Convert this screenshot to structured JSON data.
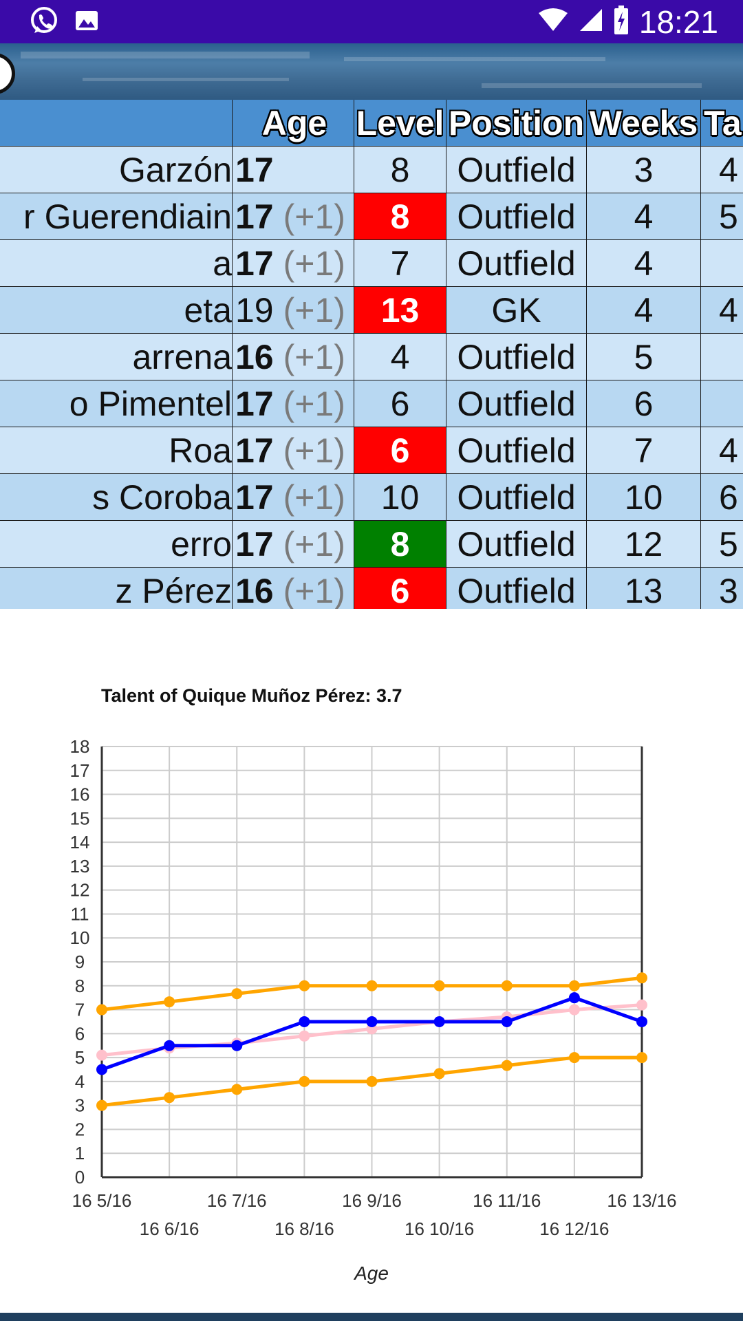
{
  "status_bar": {
    "time": "18:21",
    "left_icons": [
      "whatsapp-icon",
      "image-icon"
    ],
    "right_icons": [
      "wifi-icon",
      "signal-icon",
      "battery-charging-icon"
    ],
    "background": "#3a0aa8"
  },
  "table": {
    "headers": [
      "",
      "Age",
      "Level",
      "Position",
      "Weeks",
      "Ta"
    ],
    "rows": [
      {
        "name": "Garzón",
        "age": "17",
        "age_extra": "",
        "age_bold": true,
        "level": "8",
        "level_color": "",
        "position": "Outfield",
        "weeks": "3",
        "ta": "4"
      },
      {
        "name": "r Guerendiain",
        "age": "17",
        "age_extra": "(+1)",
        "age_bold": true,
        "level": "8",
        "level_color": "red",
        "position": "Outfield",
        "weeks": "4",
        "ta": "5"
      },
      {
        "name": "a",
        "age": "17",
        "age_extra": "(+1)",
        "age_bold": true,
        "level": "7",
        "level_color": "",
        "position": "Outfield",
        "weeks": "4",
        "ta": ""
      },
      {
        "name": "eta",
        "age": "19",
        "age_extra": "(+1)",
        "age_bold": false,
        "level": "13",
        "level_color": "red",
        "position": "GK",
        "weeks": "4",
        "ta": "4"
      },
      {
        "name": "arrena",
        "age": "16",
        "age_extra": "(+1)",
        "age_bold": true,
        "level": "4",
        "level_color": "",
        "position": "Outfield",
        "weeks": "5",
        "ta": ""
      },
      {
        "name": "o Pimentel",
        "age": "17",
        "age_extra": "(+1)",
        "age_bold": true,
        "level": "6",
        "level_color": "",
        "position": "Outfield",
        "weeks": "6",
        "ta": ""
      },
      {
        "name": "Roa",
        "age": "17",
        "age_extra": "(+1)",
        "age_bold": true,
        "level": "6",
        "level_color": "red",
        "position": "Outfield",
        "weeks": "7",
        "ta": "4"
      },
      {
        "name": "s Coroba",
        "age": "17",
        "age_extra": "(+1)",
        "age_bold": true,
        "level": "10",
        "level_color": "",
        "position": "Outfield",
        "weeks": "10",
        "ta": "6"
      },
      {
        "name": "erro",
        "age": "17",
        "age_extra": "(+1)",
        "age_bold": true,
        "level": "8",
        "level_color": "green",
        "position": "Outfield",
        "weeks": "12",
        "ta": "5"
      },
      {
        "name": "z Pérez",
        "age": "16",
        "age_extra": "(+1)",
        "age_bold": true,
        "level": "6",
        "level_color": "red",
        "position": "Outfield",
        "weeks": "13",
        "ta": "3"
      }
    ],
    "colors": {
      "header": "#4a8fd0",
      "row_a": "#b8d8f2",
      "row_b": "#cfe5f8",
      "red": "#ff0000",
      "green": "#008000"
    }
  },
  "chart_data": {
    "type": "line",
    "title": "Talent of Quique Muñoz Pérez: 3.7",
    "xlabel": "Age",
    "ylabel": "",
    "x": [
      "16 5/16",
      "16 6/16",
      "16 7/16",
      "16 8/16",
      "16 9/16",
      "16 10/16",
      "16 11/16",
      "16 12/16",
      "16 13/16"
    ],
    "ylim": [
      0,
      18
    ],
    "yticks": [
      0,
      1,
      2,
      3,
      4,
      5,
      6,
      7,
      8,
      9,
      10,
      11,
      12,
      13,
      14,
      15,
      16,
      17,
      18
    ],
    "grid": true,
    "series": [
      {
        "color": "#ffa500",
        "values": [
          7,
          7.33,
          7.67,
          8,
          8,
          8,
          8,
          8,
          8.33
        ]
      },
      {
        "color": "#ffc0cb",
        "values": [
          5.1,
          5.4,
          5.6,
          5.9,
          6.2,
          6.5,
          6.7,
          7.0,
          7.2
        ]
      },
      {
        "color": "#0000ff",
        "values": [
          4.5,
          5.5,
          5.5,
          6.5,
          6.5,
          6.5,
          6.5,
          7.5,
          6.5
        ]
      },
      {
        "color": "#ffa500",
        "values": [
          3,
          3.33,
          3.67,
          4,
          4,
          4.33,
          4.67,
          5,
          5
        ]
      }
    ]
  }
}
